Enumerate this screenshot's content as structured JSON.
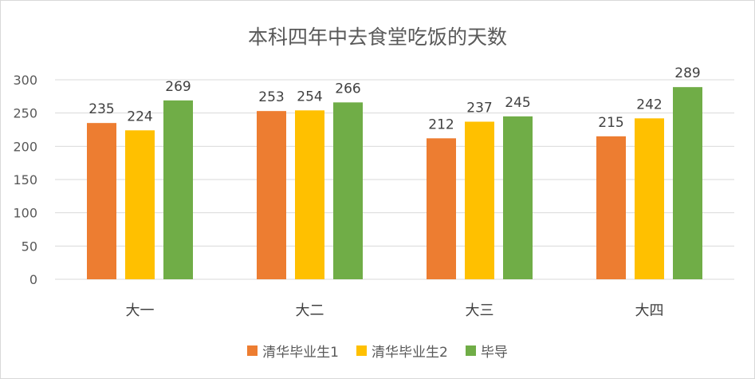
{
  "chart_data": {
    "type": "bar",
    "title": "本科四年中去食堂吃饭的天数",
    "categories": [
      "大一",
      "大二",
      "大三",
      "大四"
    ],
    "series": [
      {
        "name": "清华毕业生1",
        "color": "#ed7d31",
        "values": [
          235,
          253,
          212,
          215
        ]
      },
      {
        "name": "清华毕业生2",
        "color": "#ffc000",
        "values": [
          224,
          254,
          237,
          242
        ]
      },
      {
        "name": "毕导",
        "color": "#70ad47",
        "values": [
          269,
          266,
          245,
          289
        ]
      }
    ],
    "ylim": [
      0,
      300
    ],
    "yticks": [
      0,
      50,
      100,
      150,
      200,
      250,
      300
    ],
    "grid": true,
    "legend_position": "bottom",
    "data_labels": true
  }
}
